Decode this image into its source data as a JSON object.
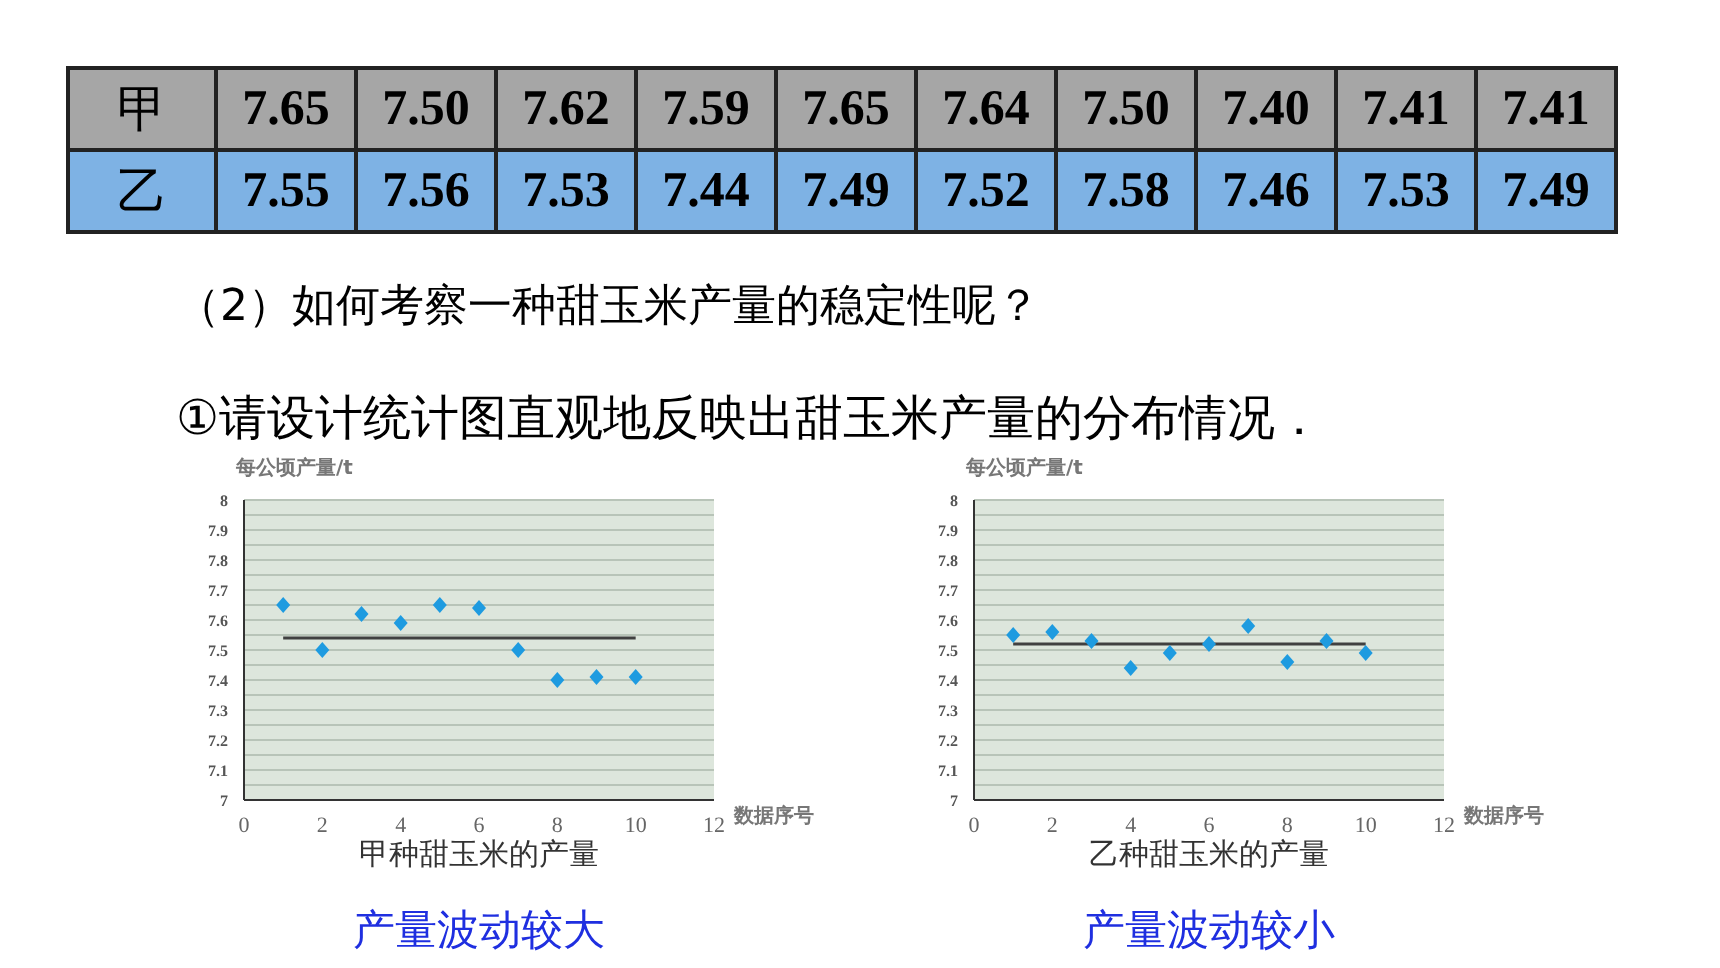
{
  "chart_data": [
    {
      "type": "scatter",
      "title": "甲种甜玉米的产量",
      "xlabel": "数据序号",
      "ylabel": "每公顷产量/t",
      "annotations": [
        "7.65",
        "7.50",
        "7.62",
        "7.59",
        "7.65",
        "7.64",
        "7.50",
        "7.40",
        "7.41",
        "7.41",
        "（2）如何考察一种甜玉米产量的稳定性呢？",
        "①请设计统计图直观地反映出甜玉米产量的分布情况．",
        "产量波动较大"
      ],
      "x": [
        1,
        2,
        3,
        4,
        5,
        6,
        7,
        8,
        9,
        10
      ],
      "series": [
        {
          "name": "甲",
          "color": "#1e9be0",
          "values": [
            7.65,
            7.5,
            7.62,
            7.59,
            7.65,
            7.64,
            7.5,
            7.4,
            7.41,
            7.41
          ]
        },
        {
          "type": "line",
          "color": "#404040",
          "marker": "none",
          "values": [
            7.54,
            7.54,
            7.54,
            7.54,
            7.54,
            7.54,
            7.54,
            7.54,
            7.54,
            7.54
          ]
        }
      ],
      "xlim": [
        0,
        12
      ],
      "xticks": [
        0,
        2,
        4,
        6,
        8,
        10,
        12
      ],
      "ylim": [
        7,
        8
      ],
      "yticks": [
        7,
        {
          "value": 7.05,
          "label": null
        },
        7.1,
        {
          "value": 7.15,
          "label": null
        },
        7.2,
        {
          "value": 7.25,
          "label": null
        },
        7.3,
        {
          "value": 7.35,
          "label": null
        },
        7.4,
        {
          "value": 7.45,
          "label": null
        },
        7.5,
        {
          "value": 7.55,
          "label": null
        },
        7.6,
        {
          "value": 7.65,
          "label": null
        },
        7.7,
        {
          "value": 7.75,
          "label": null
        },
        7.8,
        {
          "value": 7.85,
          "label": null
        },
        7.9,
        {
          "value": 7.95,
          "label": null
        },
        8
      ],
      "grid": "y",
      "marker": "diamond"
    },
    {
      "type": "scatter",
      "title": "乙种甜玉米的产量",
      "xlabel": "数据序号",
      "ylabel": "每公顷产量/t",
      "annotations": [
        "7.55",
        "7.56",
        "7.53",
        "7.44",
        "7.49",
        "7.52",
        "7.58",
        "7.46",
        "7.53",
        "7.49",
        "产量波动较小"
      ],
      "x": [
        1,
        2,
        3,
        4,
        5,
        6,
        7,
        8,
        9,
        10
      ],
      "series": [
        {
          "name": "乙",
          "color": "#1e9be0",
          "values": [
            7.55,
            7.56,
            7.53,
            7.44,
            7.49,
            7.52,
            7.58,
            7.46,
            7.53,
            7.49
          ]
        },
        {
          "type": "line",
          "color": "#404040",
          "marker": "none",
          "values": [
            7.52,
            7.52,
            7.52,
            7.52,
            7.52,
            7.52,
            7.52,
            7.52,
            7.52,
            7.52
          ]
        }
      ],
      "xlim": [
        0,
        12
      ],
      "xticks": [
        0,
        2,
        4,
        6,
        8,
        10,
        12
      ],
      "ylim": [
        7,
        8
      ],
      "yticks": [
        7,
        {
          "value": 7.05,
          "label": null
        },
        7.1,
        {
          "value": 7.15,
          "label": null
        },
        7.2,
        {
          "value": 7.25,
          "label": null
        },
        7.3,
        {
          "value": 7.35,
          "label": null
        },
        7.4,
        {
          "value": 7.45,
          "label": null
        },
        7.5,
        {
          "value": 7.55,
          "label": null
        },
        7.6,
        {
          "value": 7.65,
          "label": null
        },
        7.7,
        {
          "value": 7.75,
          "label": null
        },
        7.8,
        {
          "value": 7.85,
          "label": null
        },
        7.9,
        {
          "value": 7.95,
          "label": null
        },
        8
      ],
      "grid": "y",
      "marker": "diamond"
    }
  ]
}
